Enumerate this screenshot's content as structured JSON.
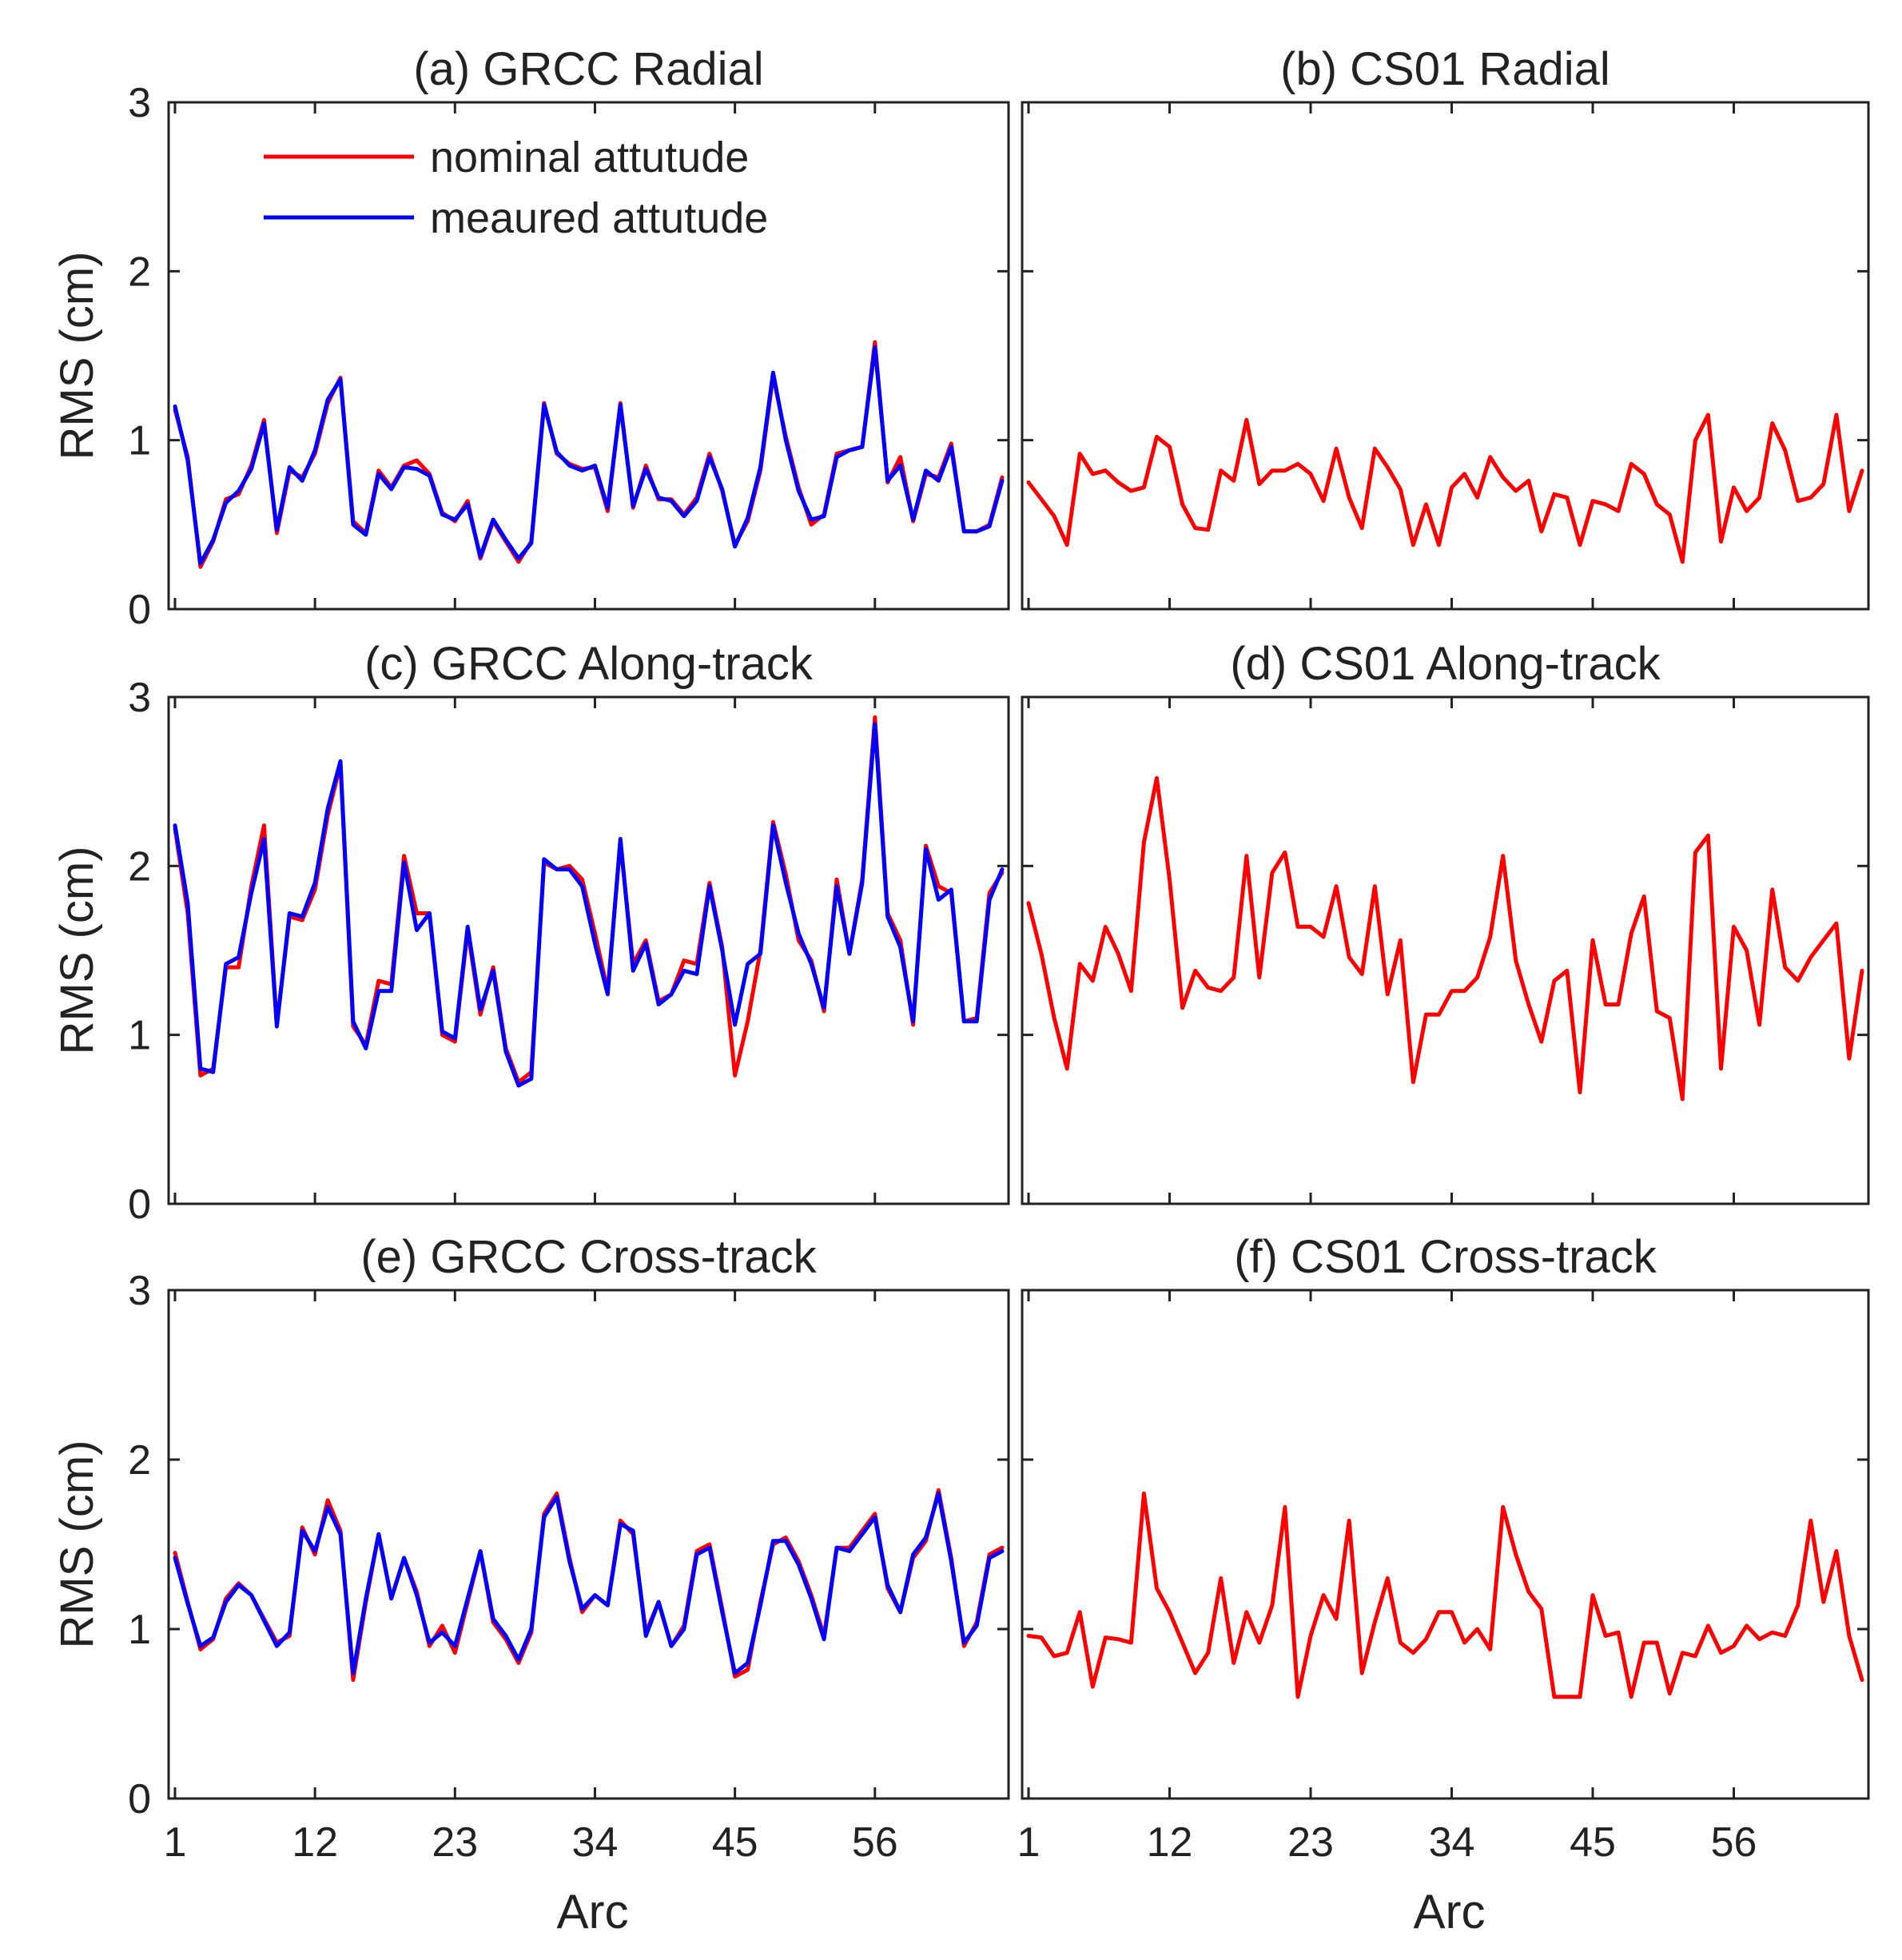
{
  "colors": {
    "nominal": "#ff0000",
    "measured": "#0000ff",
    "axis": "#222222"
  },
  "shared": {
    "xlabel": "Arc",
    "ylabel": "RMS (cm)",
    "xticks": [
      1,
      12,
      23,
      34,
      45,
      56
    ],
    "yticks": [
      0,
      1,
      2,
      3
    ],
    "xlim": [
      0.5,
      66.5
    ],
    "ylim": [
      0,
      3
    ]
  },
  "legend": {
    "entries": [
      {
        "label": "nominal attutude",
        "color": "#ff0000"
      },
      {
        "label": "meaured attutude",
        "color": "#0000ff"
      }
    ]
  },
  "chart_data": [
    {
      "id": "a",
      "type": "line",
      "title": "(a) GRCC Radial",
      "xlabel": "",
      "ylabel": "RMS (cm)",
      "x_start": 1,
      "ylim": [
        0,
        3
      ],
      "xticks": [
        1,
        12,
        23,
        34,
        45,
        56
      ],
      "yticks": [
        0,
        1,
        2,
        3
      ],
      "series": [
        {
          "name": "nominal attutude",
          "color": "#ff0000",
          "values": [
            1.18,
            0.9,
            0.25,
            0.4,
            0.65,
            0.68,
            0.85,
            1.12,
            0.45,
            0.82,
            0.78,
            0.92,
            1.22,
            1.37,
            0.52,
            0.45,
            0.82,
            0.72,
            0.85,
            0.88,
            0.8,
            0.57,
            0.52,
            0.64,
            0.3,
            0.52,
            0.4,
            0.28,
            0.4,
            1.22,
            0.92,
            0.86,
            0.83,
            0.84,
            0.58,
            1.22,
            0.6,
            0.85,
            0.65,
            0.65,
            0.56,
            0.66,
            0.92,
            0.7,
            0.38,
            0.52,
            0.82,
            1.38,
            1.02,
            0.72,
            0.5,
            0.56,
            0.92,
            0.94,
            0.96,
            1.58,
            0.75,
            0.9,
            0.52,
            0.8,
            0.78,
            0.98,
            0.46,
            0.46,
            0.5,
            0.78
          ]
        },
        {
          "name": "meaured attutude",
          "color": "#0000ff",
          "values": [
            1.2,
            0.88,
            0.27,
            0.41,
            0.63,
            0.7,
            0.83,
            1.1,
            0.47,
            0.84,
            0.76,
            0.94,
            1.24,
            1.36,
            0.5,
            0.44,
            0.8,
            0.71,
            0.84,
            0.83,
            0.79,
            0.56,
            0.53,
            0.62,
            0.31,
            0.53,
            0.41,
            0.3,
            0.39,
            1.21,
            0.93,
            0.85,
            0.82,
            0.85,
            0.6,
            1.21,
            0.61,
            0.83,
            0.66,
            0.64,
            0.55,
            0.64,
            0.9,
            0.71,
            0.37,
            0.54,
            0.84,
            1.4,
            1.0,
            0.7,
            0.53,
            0.55,
            0.9,
            0.94,
            0.96,
            1.55,
            0.76,
            0.85,
            0.53,
            0.82,
            0.76,
            0.96,
            0.46,
            0.46,
            0.49,
            0.76
          ]
        }
      ]
    },
    {
      "id": "b",
      "type": "line",
      "title": "(b) CS01 Radial",
      "xlabel": "",
      "ylabel": "",
      "x_start": 1,
      "ylim": [
        0,
        3
      ],
      "xticks": [
        1,
        12,
        23,
        34,
        45,
        56
      ],
      "yticks": [
        0,
        1,
        2,
        3
      ],
      "series": [
        {
          "name": "nominal attutude",
          "color": "#ff0000",
          "values": [
            0.75,
            0.65,
            0.55,
            0.38,
            0.92,
            0.8,
            0.82,
            0.75,
            0.7,
            0.72,
            1.02,
            0.96,
            0.62,
            0.48,
            0.47,
            0.82,
            0.76,
            1.12,
            0.74,
            0.82,
            0.82,
            0.86,
            0.8,
            0.64,
            0.95,
            0.66,
            0.48,
            0.95,
            0.84,
            0.71,
            0.38,
            0.62,
            0.38,
            0.72,
            0.8,
            0.66,
            0.9,
            0.78,
            0.7,
            0.76,
            0.46,
            0.68,
            0.66,
            0.38,
            0.64,
            0.62,
            0.58,
            0.86,
            0.8,
            0.62,
            0.56,
            0.28,
            1.0,
            1.15,
            0.4,
            0.72,
            0.58,
            0.66,
            1.1,
            0.94,
            0.64,
            0.66,
            0.74,
            1.15,
            0.58,
            0.82
          ]
        }
      ]
    },
    {
      "id": "c",
      "type": "line",
      "title": "(c) GRCC Along-track",
      "xlabel": "",
      "ylabel": "RMS (cm)",
      "x_start": 1,
      "ylim": [
        0,
        3
      ],
      "xticks": [
        1,
        12,
        23,
        34,
        45,
        56
      ],
      "yticks": [
        0,
        1,
        2,
        3
      ],
      "series": [
        {
          "name": "nominal attutude",
          "color": "#ff0000",
          "values": [
            2.22,
            1.72,
            0.76,
            0.8,
            1.4,
            1.4,
            1.88,
            2.24,
            1.06,
            1.7,
            1.68,
            1.86,
            2.3,
            2.6,
            1.05,
            0.94,
            1.32,
            1.3,
            2.06,
            1.72,
            1.72,
            1.0,
            0.96,
            1.62,
            1.12,
            1.4,
            0.92,
            0.72,
            0.78,
            2.02,
            1.98,
            2.0,
            1.92,
            1.6,
            1.26,
            2.14,
            1.42,
            1.56,
            1.2,
            1.24,
            1.44,
            1.42,
            1.9,
            1.52,
            0.76,
            1.08,
            1.5,
            2.26,
            1.95,
            1.56,
            1.44,
            1.14,
            1.92,
            1.48,
            1.92,
            2.88,
            1.72,
            1.56,
            1.06,
            2.12,
            1.88,
            1.84,
            1.08,
            1.1,
            1.84,
            1.96
          ]
        },
        {
          "name": "meaured attutude",
          "color": "#0000ff",
          "values": [
            2.24,
            1.78,
            0.8,
            0.78,
            1.42,
            1.46,
            1.84,
            2.16,
            1.05,
            1.72,
            1.7,
            1.9,
            2.34,
            2.62,
            1.08,
            0.92,
            1.26,
            1.26,
            2.02,
            1.62,
            1.72,
            1.02,
            0.98,
            1.64,
            1.15,
            1.38,
            0.9,
            0.7,
            0.74,
            2.04,
            1.98,
            1.98,
            1.88,
            1.54,
            1.24,
            2.16,
            1.38,
            1.54,
            1.18,
            1.24,
            1.38,
            1.36,
            1.88,
            1.5,
            1.06,
            1.42,
            1.48,
            2.24,
            1.9,
            1.6,
            1.42,
            1.16,
            1.88,
            1.48,
            1.9,
            2.84,
            1.7,
            1.52,
            1.08,
            2.1,
            1.8,
            1.86,
            1.08,
            1.08,
            1.8,
            1.98
          ]
        }
      ]
    },
    {
      "id": "d",
      "type": "line",
      "title": "(d) CS01 Along-track",
      "xlabel": "",
      "ylabel": "",
      "x_start": 1,
      "ylim": [
        0,
        3
      ],
      "xticks": [
        1,
        12,
        23,
        34,
        45,
        56
      ],
      "yticks": [
        0,
        1,
        2,
        3
      ],
      "series": [
        {
          "name": "nominal attutude",
          "color": "#ff0000",
          "values": [
            1.78,
            1.48,
            1.1,
            0.8,
            1.42,
            1.32,
            1.64,
            1.48,
            1.26,
            2.14,
            2.52,
            1.92,
            1.16,
            1.38,
            1.28,
            1.26,
            1.34,
            2.06,
            1.34,
            1.96,
            2.08,
            1.64,
            1.64,
            1.58,
            1.88,
            1.46,
            1.36,
            1.88,
            1.24,
            1.56,
            0.72,
            1.12,
            1.12,
            1.26,
            1.26,
            1.34,
            1.58,
            2.06,
            1.44,
            1.18,
            0.96,
            1.32,
            1.38,
            0.66,
            1.56,
            1.18,
            1.18,
            1.6,
            1.82,
            1.14,
            1.1,
            0.62,
            2.08,
            2.18,
            0.8,
            1.64,
            1.5,
            1.06,
            1.86,
            1.4,
            1.32,
            1.46,
            1.56,
            1.66,
            0.86,
            1.38
          ]
        }
      ]
    },
    {
      "id": "e",
      "type": "line",
      "title": "(e) GRCC Cross-track",
      "xlabel": "Arc",
      "ylabel": "RMS (cm)",
      "x_start": 1,
      "ylim": [
        0,
        3
      ],
      "xticks": [
        1,
        12,
        23,
        34,
        45,
        56
      ],
      "yticks": [
        0,
        1,
        2,
        3
      ],
      "series": [
        {
          "name": "nominal attutude",
          "color": "#ff0000",
          "values": [
            1.45,
            1.16,
            0.88,
            0.94,
            1.18,
            1.27,
            1.2,
            1.06,
            0.92,
            0.96,
            1.6,
            1.44,
            1.76,
            1.58,
            0.7,
            1.16,
            1.56,
            1.18,
            1.42,
            1.22,
            0.9,
            1.02,
            0.86,
            1.16,
            1.46,
            1.04,
            0.94,
            0.8,
            0.98,
            1.68,
            1.8,
            1.42,
            1.1,
            1.2,
            1.14,
            1.64,
            1.56,
            0.98,
            1.16,
            0.9,
            1.02,
            1.46,
            1.5,
            1.12,
            0.72,
            0.76,
            1.16,
            1.5,
            1.54,
            1.4,
            1.2,
            0.96,
            1.48,
            1.48,
            1.58,
            1.68,
            1.24,
            1.1,
            1.42,
            1.52,
            1.82,
            1.42,
            0.9,
            1.04,
            1.44,
            1.48
          ]
        },
        {
          "name": "meaured attutude",
          "color": "#0000ff",
          "values": [
            1.42,
            1.15,
            0.9,
            0.95,
            1.16,
            1.26,
            1.2,
            1.05,
            0.9,
            0.98,
            1.58,
            1.46,
            1.72,
            1.56,
            0.74,
            1.18,
            1.56,
            1.18,
            1.42,
            1.2,
            0.92,
            0.98,
            0.9,
            1.18,
            1.46,
            1.06,
            0.96,
            0.82,
            1.0,
            1.66,
            1.78,
            1.4,
            1.12,
            1.2,
            1.14,
            1.62,
            1.58,
            0.96,
            1.16,
            0.9,
            1.0,
            1.44,
            1.48,
            1.1,
            0.74,
            0.8,
            1.14,
            1.52,
            1.52,
            1.38,
            1.18,
            0.94,
            1.48,
            1.46,
            1.56,
            1.66,
            1.26,
            1.1,
            1.44,
            1.54,
            1.8,
            1.4,
            0.92,
            1.02,
            1.42,
            1.46
          ]
        }
      ]
    },
    {
      "id": "f",
      "type": "line",
      "title": "(f) CS01 Cross-track",
      "xlabel": "Arc",
      "ylabel": "",
      "x_start": 1,
      "ylim": [
        0,
        3
      ],
      "xticks": [
        1,
        12,
        23,
        34,
        45,
        56
      ],
      "yticks": [
        0,
        1,
        2,
        3
      ],
      "series": [
        {
          "name": "nominal attutude",
          "color": "#ff0000",
          "values": [
            0.96,
            0.95,
            0.84,
            0.86,
            1.1,
            0.66,
            0.95,
            0.94,
            0.92,
            1.8,
            1.24,
            1.1,
            0.92,
            0.74,
            0.86,
            1.3,
            0.8,
            1.1,
            0.92,
            1.14,
            1.72,
            0.6,
            0.96,
            1.2,
            1.06,
            1.64,
            0.74,
            1.04,
            1.3,
            0.92,
            0.86,
            0.94,
            1.1,
            1.1,
            0.92,
            1.0,
            0.88,
            1.72,
            1.44,
            1.22,
            1.12,
            0.6,
            0.6,
            0.6,
            1.2,
            0.96,
            0.98,
            0.6,
            0.92,
            0.92,
            0.62,
            0.86,
            0.84,
            1.02,
            0.86,
            0.9,
            1.02,
            0.94,
            0.98,
            0.96,
            1.14,
            1.64,
            1.16,
            1.46,
            0.96,
            0.7
          ]
        }
      ]
    }
  ]
}
